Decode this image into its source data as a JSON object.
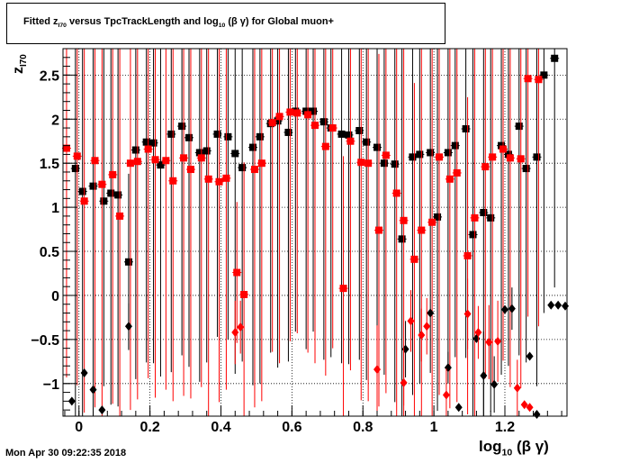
{
  "header": {
    "title_prefix": "Fitted  z",
    "title_sub": "I70",
    "title_middle": "  versus TpcTrackLength and log",
    "title_sub2": "10",
    "title_suffix": " (β γ) for Global muon+"
  },
  "footer": {
    "timestamp": "Mon Apr 30 09:22:35 2018"
  },
  "chart_data": {
    "type": "scatter",
    "title": "Fitted z_I70 versus TpcTrackLength and log10(βγ) for Global muon+",
    "xlabel": "log10 (β γ)",
    "xlabel_main": "log",
    "xlabel_sub": "10",
    "xlabel_tail": " (β γ)",
    "ylabel": "z_I70",
    "ylabel_main": "z",
    "ylabel_sub": "I70",
    "xlim": [
      -0.045,
      1.375
    ],
    "ylim": [
      -1.37,
      2.8
    ],
    "xticks": [
      0,
      0.2,
      0.4,
      0.6,
      0.8,
      1,
      1.2
    ],
    "xtick_labels": [
      "0",
      "0.2",
      "0.4",
      "0.6",
      "0.8",
      "1",
      "1.2"
    ],
    "yticks": [
      -1,
      -0.5,
      0,
      0.5,
      1,
      1.5,
      2,
      2.5
    ],
    "ytick_labels": [
      "−1",
      "−0.5",
      "0",
      "0.5",
      "1",
      "1.5",
      "2",
      "2.5"
    ],
    "grid": true,
    "colors": {
      "black": "#000000",
      "red": "#ff0000"
    },
    "series": [
      {
        "marker": "square",
        "color": "#000000",
        "x": [
          -0.01,
          0.01,
          0.04,
          0.07,
          0.09,
          0.11,
          0.14,
          0.16,
          0.19,
          0.21,
          0.23,
          0.26,
          0.29,
          0.31,
          0.34,
          0.36,
          0.39,
          0.42,
          0.44,
          0.46,
          0.49,
          0.51,
          0.54,
          0.56,
          0.59,
          0.61,
          0.64,
          0.66,
          0.69,
          0.71,
          0.74,
          0.76,
          0.79,
          0.81,
          0.84,
          0.86,
          0.89,
          0.91,
          0.94,
          0.96,
          0.99,
          1.01,
          1.04,
          1.06,
          1.09,
          1.11,
          1.14,
          1.16,
          1.19,
          1.21,
          1.24,
          1.26,
          1.29,
          1.31,
          1.34
        ],
        "y": [
          1.44,
          1.18,
          1.24,
          1.07,
          1.16,
          1.14,
          0.38,
          1.65,
          1.74,
          1.73,
          1.48,
          1.83,
          1.92,
          1.79,
          1.62,
          1.64,
          1.83,
          1.8,
          1.61,
          1.45,
          1.68,
          1.8,
          1.95,
          1.98,
          1.85,
          2.09,
          2.09,
          2.09,
          1.97,
          1.9,
          1.83,
          1.82,
          1.87,
          1.74,
          1.68,
          1.5,
          1.49,
          0.64,
          1.57,
          1.6,
          1.62,
          0.89,
          1.62,
          1.7,
          1.89,
          0.69,
          0.94,
          0.88,
          1.7,
          1.6,
          1.92,
          1.44,
          1.57,
          2.5,
          2.69
        ],
        "err": [
          2.9,
          2.6,
          2.7,
          2.1,
          2.4,
          2.4,
          1.0,
          2.6,
          2.5,
          2.5,
          2.4,
          2.7,
          2.6,
          2.6,
          2.6,
          2.4,
          2.3,
          2.3,
          2.5,
          2.2,
          2.7,
          2.8,
          2.6,
          2.8,
          2.6,
          2.5,
          2.7,
          2.5,
          2.7,
          2.6,
          2.6,
          2.6,
          2.6,
          2.7,
          2.6,
          2.4,
          2.7,
          2.3,
          2.7,
          2.6,
          2.5,
          2.2,
          2.4,
          2.4,
          2.6,
          2.3,
          2.6,
          2.2,
          2.6,
          2.4,
          2.6,
          2.2,
          2.6,
          2.7,
          2.6
        ]
      },
      {
        "marker": "square",
        "color": "#ff0000",
        "x": [
          -0.035,
          -0.005,
          0.015,
          0.045,
          0.065,
          0.095,
          0.115,
          0.145,
          0.165,
          0.195,
          0.215,
          0.245,
          0.265,
          0.295,
          0.315,
          0.345,
          0.365,
          0.395,
          0.415,
          0.445,
          0.465,
          0.495,
          0.515,
          0.545,
          0.565,
          0.595,
          0.615,
          0.645,
          0.665,
          0.695,
          0.715,
          0.745,
          0.765,
          0.795,
          0.815,
          0.845,
          0.865,
          0.895,
          0.915,
          0.945,
          0.965,
          0.995,
          1.015,
          1.045,
          1.065,
          1.095,
          1.115,
          1.145,
          1.165,
          1.195,
          1.215,
          1.245,
          1.265,
          1.295
        ],
        "y": [
          1.67,
          1.58,
          1.07,
          1.53,
          1.26,
          1.37,
          0.9,
          1.5,
          1.52,
          1.66,
          1.54,
          1.53,
          1.3,
          1.56,
          1.43,
          1.56,
          1.32,
          1.29,
          1.33,
          0.26,
          0.01,
          1.43,
          1.5,
          1.96,
          2.03,
          2.08,
          2.07,
          2.05,
          1.93,
          1.69,
          1.9,
          0.08,
          1.75,
          1.51,
          1.5,
          0.74,
          1.59,
          1.16,
          0.85,
          0.41,
          0.74,
          0.83,
          1.57,
          1.32,
          1.39,
          0.45,
          0.88,
          1.46,
          1.57,
          1.66,
          1.56,
          1.55,
          2.46,
          2.45
        ],
        "err": [
          2.6,
          2.6,
          2.4,
          2.8,
          2.7,
          2.6,
          2.4,
          2.8,
          2.7,
          2.6,
          2.7,
          2.6,
          2.5,
          2.7,
          2.6,
          2.6,
          2.7,
          2.5,
          2.4,
          0.8,
          1.5,
          2.7,
          2.7,
          2.6,
          2.8,
          2.6,
          2.5,
          2.7,
          2.7,
          2.6,
          2.5,
          1.5,
          2.6,
          2.7,
          2.7,
          2.0,
          2.7,
          2.6,
          2.1,
          2.0,
          2.3,
          2.6,
          2.7,
          2.6,
          2.6,
          1.8,
          2.4,
          2.4,
          2.6,
          2.4,
          2.6,
          2.6,
          2.7,
          2.8
        ]
      },
      {
        "marker": "diamond",
        "color": "#000000",
        "x": [
          -0.02,
          0.015,
          0.04,
          0.065,
          0.14,
          0.92,
          0.99,
          1.04,
          1.07,
          1.12,
          1.14,
          1.17,
          1.2,
          1.22,
          1.27,
          1.29,
          1.33,
          1.35,
          1.37
        ],
        "y": [
          -1.2,
          -0.88,
          -1.07,
          -1.3,
          -0.35,
          -0.61,
          -0.2,
          -0.82,
          -1.27,
          -0.49,
          -0.91,
          -1.01,
          -0.16,
          -0.15,
          -0.69,
          -1.35,
          -0.11,
          -0.11,
          -0.12
        ],
        "err": [
          0,
          0,
          0,
          0,
          0.26,
          0.32,
          0,
          0.18,
          0,
          0,
          0.5,
          0.32,
          0,
          0.24,
          0,
          0,
          0,
          0,
          0
        ]
      },
      {
        "marker": "diamond",
        "color": "#ff0000",
        "x": [
          0.44,
          0.455,
          0.84,
          0.915,
          0.935,
          0.965,
          0.98,
          1.035,
          1.095,
          1.125,
          1.155,
          1.18,
          1.235,
          1.255,
          1.27
        ],
        "y": [
          -0.42,
          -0.36,
          -0.84,
          -0.99,
          -0.29,
          -0.45,
          -0.35,
          -1.13,
          -0.21,
          -0.42,
          -0.53,
          -0.52,
          -1.05,
          -1.24,
          -1.27
        ],
        "err": [
          0.36,
          0.3,
          0.5,
          0.4,
          0.35,
          0.3,
          0.32,
          0.3,
          0.4,
          0.3,
          0.42,
          0.46,
          0.32,
          0,
          0
        ]
      }
    ]
  }
}
